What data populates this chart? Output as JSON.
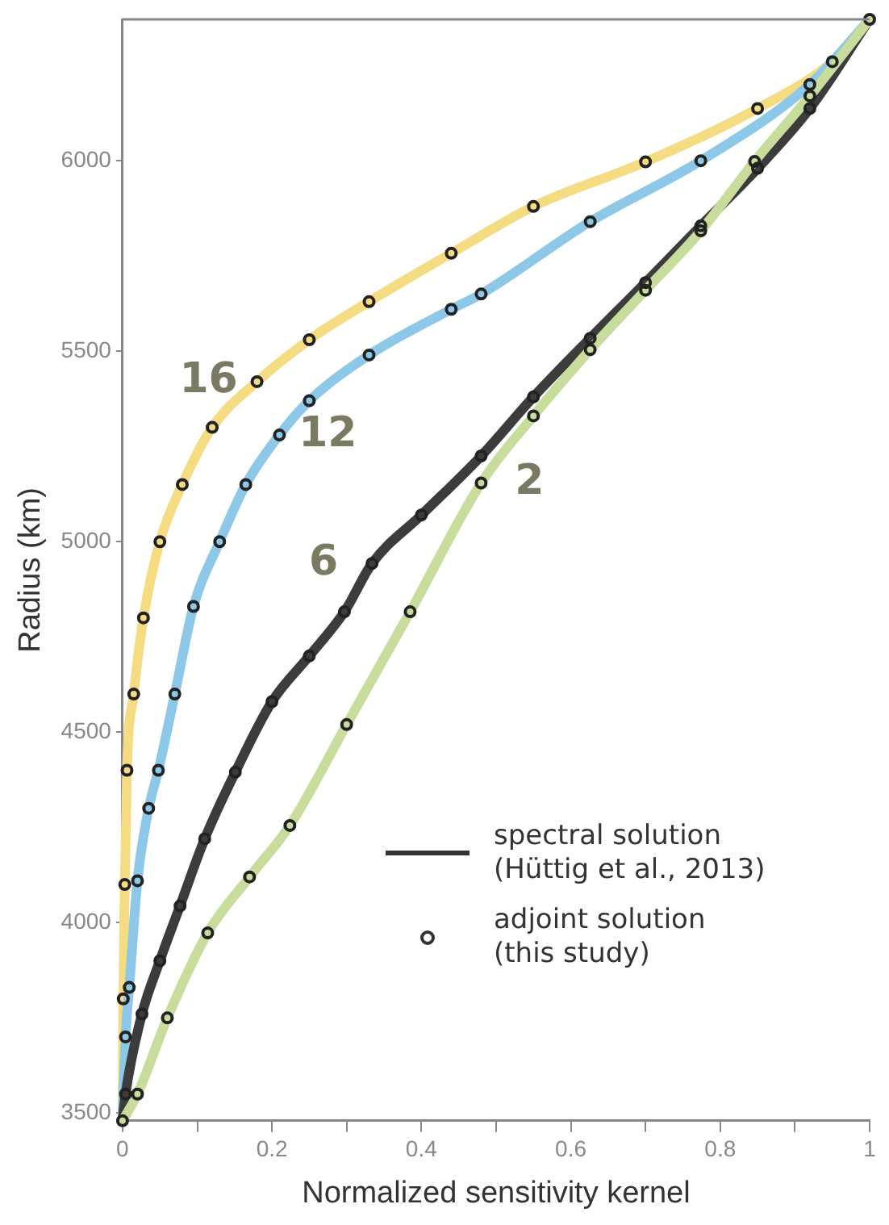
{
  "chart_data": {
    "type": "line",
    "xlabel": "Normalized sensitivity kernel",
    "ylabel": "Radius (km)",
    "xlim": [
      0,
      1
    ],
    "ylim": [
      3480,
      6371
    ],
    "xticks": [
      0,
      {
        "value": 0.1,
        "label": null
      },
      0.2,
      {
        "value": 0.3,
        "label": null
      },
      0.4,
      {
        "value": 0.5,
        "label": null
      },
      0.6,
      {
        "value": 0.7,
        "label": null
      },
      0.8,
      {
        "value": 0.9,
        "label": null
      },
      1
    ],
    "yticks": [
      3500,
      4000,
      4500,
      5000,
      5500,
      6000
    ],
    "series": [
      {
        "name": "2",
        "marker": "none",
        "color": "#c8dc9c",
        "x": [
          0,
          0.02,
          0.06,
          0.114,
          0.17,
          0.224,
          0.3,
          0.385,
          0.48,
          0.55,
          0.626,
          0.7,
          0.774,
          0.846,
          0.92,
          1
        ],
        "values": [
          3480,
          3550,
          3750,
          3973,
          4120,
          4255,
          4520,
          4816,
          5154,
          5330,
          5504,
          5660,
          5816,
          5998,
          6170,
          6371
        ]
      },
      {
        "name": "6",
        "marker": "none",
        "color": "#3c3c3c",
        "x": [
          0,
          0.004,
          0.026,
          0.05,
          0.077,
          0.11,
          0.151,
          0.2,
          0.25,
          0.297,
          0.334,
          0.4,
          0.48,
          0.55,
          0.626,
          0.7,
          0.774,
          0.85,
          0.92,
          1
        ],
        "values": [
          3480,
          3550,
          3760,
          3900,
          4044,
          4220,
          4395,
          4580,
          4700,
          4816,
          4943,
          5070,
          5225,
          5380,
          5534,
          5680,
          5829,
          5980,
          6137,
          6371
        ]
      },
      {
        "name": "12",
        "marker": "none",
        "color": "#8ec8e8",
        "x": [
          0,
          0.004,
          0.009,
          0.02,
          0.035,
          0.048,
          0.07,
          0.095,
          0.13,
          0.165,
          0.21,
          0.25,
          0.33,
          0.44,
          0.48,
          0.626,
          0.774,
          0.92,
          1
        ],
        "values": [
          3480,
          3700,
          3830,
          4110,
          4300,
          4400,
          4600,
          4830,
          5000,
          5150,
          5280,
          5370,
          5490,
          5610,
          5650,
          5840,
          6000,
          6200,
          6371
        ]
      },
      {
        "name": "16",
        "marker": "none",
        "color": "#f5dc82",
        "x": [
          0,
          0.001,
          0.003,
          0.006,
          0.015,
          0.028,
          0.05,
          0.08,
          0.12,
          0.18,
          0.25,
          0.33,
          0.44,
          0.55,
          0.7,
          0.85,
          0.95,
          1
        ],
        "values": [
          3480,
          3800,
          4100,
          4400,
          4600,
          4800,
          5000,
          5150,
          5300,
          5420,
          5530,
          5630,
          5757,
          5880,
          5997,
          6137,
          6260,
          6371
        ]
      },
      {
        "type": "scatter",
        "marker": "circle",
        "color": "#222222",
        "x": [
          0,
          0.02,
          0.06,
          0.114,
          0.17,
          0.224,
          0.3,
          0.385,
          0.48,
          0.55,
          0.626,
          0.7,
          0.774,
          0.846,
          0.92,
          1
        ],
        "values": [
          3480,
          3550,
          3750,
          3973,
          4120,
          4255,
          4520,
          4816,
          5154,
          5330,
          5504,
          5660,
          5816,
          5998,
          6170,
          6371
        ]
      },
      {
        "type": "scatter",
        "marker": "circle",
        "color": "#222222",
        "x": [
          0.004,
          0.026,
          0.05,
          0.077,
          0.11,
          0.151,
          0.2,
          0.25,
          0.297,
          0.334,
          0.4,
          0.48,
          0.55,
          0.626,
          0.7,
          0.774,
          0.85,
          0.92
        ],
        "values": [
          3550,
          3760,
          3900,
          4044,
          4220,
          4395,
          4580,
          4700,
          4816,
          4943,
          5070,
          5225,
          5380,
          5534,
          5680,
          5829,
          5980,
          6137
        ]
      },
      {
        "type": "scatter",
        "marker": "circle",
        "color": "#222222",
        "x": [
          0.004,
          0.009,
          0.02,
          0.035,
          0.048,
          0.07,
          0.095,
          0.13,
          0.165,
          0.21,
          0.25,
          0.33,
          0.44,
          0.48,
          0.626,
          0.774,
          0.92
        ],
        "values": [
          3700,
          3830,
          4110,
          4300,
          4400,
          4600,
          4830,
          5000,
          5150,
          5280,
          5370,
          5490,
          5610,
          5650,
          5840,
          6000,
          6200
        ]
      },
      {
        "type": "scatter",
        "marker": "circle",
        "color": "#222222",
        "x": [
          0.001,
          0.003,
          0.006,
          0.015,
          0.028,
          0.05,
          0.08,
          0.12,
          0.18,
          0.25,
          0.33,
          0.44,
          0.55,
          0.7,
          0.85,
          0.95
        ],
        "values": [
          3800,
          4100,
          4400,
          4600,
          4800,
          5000,
          5150,
          5300,
          5420,
          5530,
          5630,
          5757,
          5880,
          5997,
          6137,
          6260
        ]
      }
    ],
    "annotations": [
      "spectral solution\n(Hüttig et al., 2013)",
      "adjoint solution\n(this study)"
    ]
  }
}
